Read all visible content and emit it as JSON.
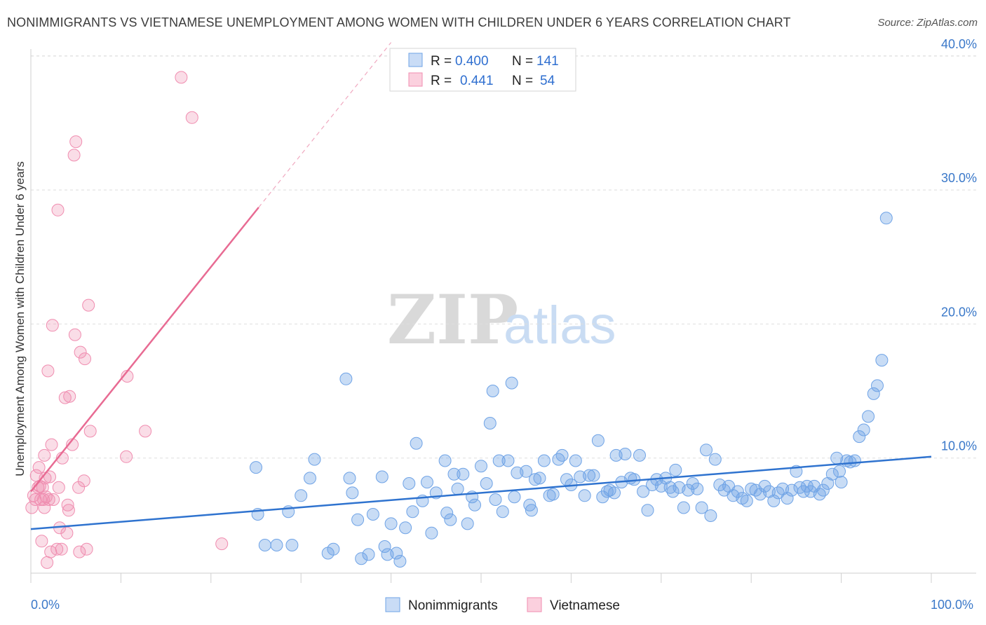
{
  "title": "NONIMMIGRANTS VS VIETNAMESE UNEMPLOYMENT AMONG WOMEN WITH CHILDREN UNDER 6 YEARS CORRELATION CHART",
  "source": "Source: ZipAtlas.com",
  "watermark": {
    "zip": "ZIP",
    "atlas": "atlas"
  },
  "colors": {
    "blue": "#6fa3e6",
    "blue_line": "#2f73cf",
    "pink": "#f08db0",
    "pink_line": "#e86b93",
    "tick_text": "#3a78c9"
  },
  "legend": {
    "r_label": "R =",
    "n_label": "N =",
    "rows": [
      {
        "r": "0.400",
        "n": "141"
      },
      {
        "r": "0.441",
        "n": "54"
      }
    ]
  },
  "bottom_legend": [
    "Nonimmigrants",
    "Vietnamese"
  ],
  "chart_data": {
    "type": "scatter",
    "xlabel": "",
    "ylabel": "Unemployment Among Women with Children Under 6 years",
    "xlim": [
      0,
      100
    ],
    "ylim": [
      0,
      42
    ],
    "x_tick_labels": [
      "0.0%",
      "100.0%"
    ],
    "y_ticks": [
      10,
      20,
      30,
      40
    ],
    "y_tick_labels": [
      "10.0%",
      "20.0%",
      "30.0%",
      "40.0%"
    ],
    "grid": true,
    "legend_position": "top-center",
    "series": [
      {
        "name": "Nonimmigrants",
        "color": "#6fa3e6",
        "trend": {
          "x0": 0,
          "y0": 4.7,
          "x1": 100,
          "y1": 10.1
        },
        "points": [
          [
            25,
            9.3
          ],
          [
            25.2,
            5.8
          ],
          [
            26,
            3.5
          ],
          [
            27.3,
            3.5
          ],
          [
            28.6,
            6
          ],
          [
            29,
            3.5
          ],
          [
            30,
            7.2
          ],
          [
            31,
            8.5
          ],
          [
            31.5,
            9.9
          ],
          [
            33,
            2.9
          ],
          [
            33.6,
            3.2
          ],
          [
            35,
            15.9
          ],
          [
            35.4,
            8.5
          ],
          [
            35.7,
            7.4
          ],
          [
            36.3,
            5.4
          ],
          [
            36.7,
            2.5
          ],
          [
            37.5,
            2.8
          ],
          [
            38,
            5.8
          ],
          [
            39,
            8.6
          ],
          [
            39.3,
            3.4
          ],
          [
            39.6,
            2.8
          ],
          [
            40,
            5.1
          ],
          [
            40.6,
            2.9
          ],
          [
            41,
            2.3
          ],
          [
            41.6,
            4.8
          ],
          [
            42,
            8.1
          ],
          [
            42.4,
            6
          ],
          [
            42.8,
            11.1
          ],
          [
            43.5,
            6.8
          ],
          [
            44,
            8.2
          ],
          [
            44.5,
            4.4
          ],
          [
            45,
            7.4
          ],
          [
            46,
            9.8
          ],
          [
            46.2,
            5.9
          ],
          [
            46.6,
            5.4
          ],
          [
            47,
            8.8
          ],
          [
            47.4,
            7.7
          ],
          [
            48,
            8.8
          ],
          [
            48.5,
            5.1
          ],
          [
            49,
            7.1
          ],
          [
            49.3,
            6.5
          ],
          [
            50,
            9.4
          ],
          [
            50.6,
            8.1
          ],
          [
            51,
            12.6
          ],
          [
            51.3,
            15
          ],
          [
            51.6,
            6.9
          ],
          [
            52,
            9.8
          ],
          [
            52.4,
            6
          ],
          [
            53,
            9.8
          ],
          [
            53.4,
            15.6
          ],
          [
            53.7,
            7.1
          ],
          [
            54,
            8.9
          ],
          [
            55,
            9
          ],
          [
            55.4,
            6.5
          ],
          [
            55.6,
            6.1
          ],
          [
            56,
            8.4
          ],
          [
            56.5,
            8.5
          ],
          [
            57,
            9.8
          ],
          [
            57.6,
            7.2
          ],
          [
            58,
            7.3
          ],
          [
            58.6,
            9.9
          ],
          [
            59,
            10.2
          ],
          [
            59.5,
            8.4
          ],
          [
            60,
            8
          ],
          [
            60.5,
            9.8
          ],
          [
            61,
            8.6
          ],
          [
            61.5,
            7.2
          ],
          [
            62,
            8.7
          ],
          [
            62.5,
            8.7
          ],
          [
            63,
            11.3
          ],
          [
            63.5,
            7.1
          ],
          [
            64,
            7.5
          ],
          [
            64.3,
            7.6
          ],
          [
            64.8,
            7.4
          ],
          [
            65,
            10.2
          ],
          [
            65.6,
            8.2
          ],
          [
            66,
            10.3
          ],
          [
            66.6,
            8.5
          ],
          [
            67,
            8.4
          ],
          [
            67.6,
            10.2
          ],
          [
            68,
            7.5
          ],
          [
            68.5,
            6.1
          ],
          [
            69,
            8
          ],
          [
            69.5,
            8.4
          ],
          [
            70,
            7.9
          ],
          [
            70.5,
            8.5
          ],
          [
            71,
            7.8
          ],
          [
            71.3,
            7.5
          ],
          [
            71.6,
            9.1
          ],
          [
            72,
            7.8
          ],
          [
            72.5,
            6.3
          ],
          [
            73,
            7.6
          ],
          [
            73.5,
            8.1
          ],
          [
            74,
            7.7
          ],
          [
            74.5,
            6.3
          ],
          [
            75,
            10.6
          ],
          [
            75.5,
            5.7
          ],
          [
            76,
            9.9
          ],
          [
            76.5,
            8.0
          ],
          [
            77,
            7.6
          ],
          [
            77.5,
            7.9
          ],
          [
            78,
            7.2
          ],
          [
            78.5,
            7.5
          ],
          [
            79,
            7.0
          ],
          [
            79.5,
            6.8
          ],
          [
            80,
            7.7
          ],
          [
            80.5,
            7.6
          ],
          [
            81,
            7.3
          ],
          [
            81.5,
            7.9
          ],
          [
            82,
            7.5
          ],
          [
            82.5,
            6.8
          ],
          [
            83,
            7.4
          ],
          [
            83.5,
            7.7
          ],
          [
            84,
            7.0
          ],
          [
            84.5,
            7.6
          ],
          [
            85,
            9.0
          ],
          [
            85.4,
            7.8
          ],
          [
            85.8,
            7.5
          ],
          [
            86.2,
            7.9
          ],
          [
            86.6,
            7.5
          ],
          [
            87,
            7.9
          ],
          [
            87.6,
            7.3
          ],
          [
            88,
            7.6
          ],
          [
            88.5,
            8.1
          ],
          [
            89,
            8.8
          ],
          [
            89.5,
            10.0
          ],
          [
            89.8,
            9.0
          ],
          [
            90,
            8.2
          ],
          [
            90.6,
            9.8
          ],
          [
            91,
            9.7
          ],
          [
            91.5,
            9.8
          ],
          [
            92,
            11.6
          ],
          [
            92.5,
            12.1
          ],
          [
            93,
            13.1
          ],
          [
            93.6,
            14.8
          ],
          [
            94,
            15.4
          ],
          [
            94.5,
            17.3
          ],
          [
            95,
            27.9
          ]
        ]
      },
      {
        "name": "Vietnamese",
        "color": "#f08db0",
        "trend": {
          "x0": 0,
          "y0": 7.5,
          "x1": 25.3,
          "y1": 28.7,
          "dash_to": {
            "x": 40,
            "y": 41
          }
        },
        "points": [
          [
            0.1,
            6.3
          ],
          [
            0.3,
            7.2
          ],
          [
            0.5,
            6.9
          ],
          [
            0.6,
            8.7
          ],
          [
            0.8,
            7.8
          ],
          [
            0.9,
            9.3
          ],
          [
            1.0,
            7.9
          ],
          [
            1.1,
            6.9
          ],
          [
            1.2,
            3.8
          ],
          [
            1.3,
            7.8
          ],
          [
            1.4,
            6.9
          ],
          [
            1.5,
            6.3
          ],
          [
            1.5,
            10.2
          ],
          [
            1.6,
            8.5
          ],
          [
            1.7,
            7.1
          ],
          [
            1.8,
            2.2
          ],
          [
            1.9,
            16.5
          ],
          [
            2.0,
            6.9
          ],
          [
            2.1,
            8.6
          ],
          [
            2.2,
            3.0
          ],
          [
            2.3,
            11.0
          ],
          [
            2.4,
            19.9
          ],
          [
            2.5,
            6.9
          ],
          [
            2.9,
            3.2
          ],
          [
            3.0,
            28.5
          ],
          [
            3.1,
            7.8
          ],
          [
            3.2,
            4.8
          ],
          [
            3.4,
            3.2
          ],
          [
            3.5,
            10.0
          ],
          [
            3.8,
            14.5
          ],
          [
            4.0,
            4.4
          ],
          [
            4.1,
            6.5
          ],
          [
            4.2,
            6.1
          ],
          [
            4.3,
            14.6
          ],
          [
            4.6,
            11.0
          ],
          [
            4.8,
            32.6
          ],
          [
            4.9,
            19.2
          ],
          [
            5.0,
            33.6
          ],
          [
            5.3,
            7.8
          ],
          [
            5.4,
            3.0
          ],
          [
            5.5,
            17.9
          ],
          [
            5.9,
            8.3
          ],
          [
            6.0,
            17.4
          ],
          [
            6.2,
            3.2
          ],
          [
            6.4,
            21.4
          ],
          [
            6.6,
            12.0
          ],
          [
            10.6,
            10.1
          ],
          [
            10.7,
            16.1
          ],
          [
            12.7,
            12.0
          ],
          [
            16.7,
            38.4
          ],
          [
            17.9,
            35.4
          ],
          [
            21.2,
            3.6
          ]
        ]
      }
    ]
  }
}
